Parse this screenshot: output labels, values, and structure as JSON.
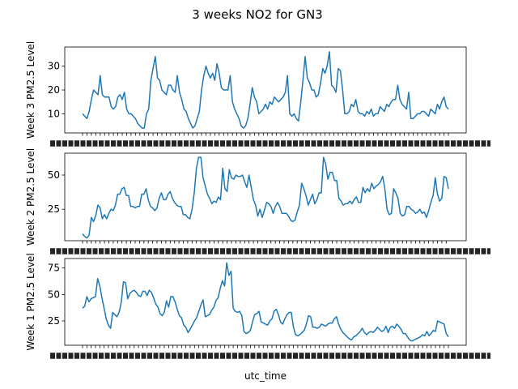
{
  "figure": {
    "suptitle": "3 weeks NO2 for GN3",
    "xlabel": "utc_time",
    "line_color": "#1f77b4"
  },
  "chart_data": [
    {
      "type": "line",
      "ylabel": "Week 3 PM2.5 Level",
      "yticks": [
        10,
        20,
        30
      ],
      "ylim": [
        2,
        38
      ],
      "series": [
        {
          "values": [
            10,
            9,
            8,
            11,
            16,
            20,
            19,
            18,
            26,
            18,
            17,
            17,
            17,
            13,
            12,
            13,
            17,
            18,
            16,
            19,
            12,
            10,
            10,
            9,
            8,
            6,
            5,
            4,
            4,
            10,
            12,
            24,
            29,
            34,
            25,
            24,
            20,
            19,
            18,
            22,
            22,
            20,
            19,
            26,
            19,
            16,
            12,
            11,
            8,
            6,
            4,
            5,
            8,
            11,
            20,
            26,
            30,
            27,
            25,
            27,
            24,
            31,
            27,
            21,
            20,
            20,
            20,
            26,
            15,
            12,
            10,
            8,
            5,
            4,
            5,
            8,
            14,
            21,
            17,
            15,
            10,
            11,
            12,
            14,
            12,
            15,
            14,
            17,
            16,
            15,
            16,
            17,
            19,
            26,
            10,
            9,
            10,
            8,
            7,
            15,
            24,
            34,
            25,
            23,
            20,
            20,
            17,
            18,
            23,
            29,
            27,
            30,
            36,
            22,
            21,
            19,
            29,
            28,
            20,
            10,
            10,
            11,
            14,
            13,
            16,
            11,
            10,
            10,
            9,
            11,
            10,
            12,
            9,
            10,
            10,
            13,
            12,
            11,
            14,
            13,
            15,
            16,
            16,
            22,
            16,
            14,
            13,
            12,
            19,
            8,
            8,
            9,
            10,
            10,
            11,
            11,
            10,
            9,
            12,
            11,
            10,
            14,
            12,
            15,
            17,
            13,
            12
          ]
        }
      ]
    },
    {
      "type": "line",
      "ylabel": "Week 2 PM2.5 Level",
      "yticks": [
        25,
        50
      ],
      "ylim": [
        2,
        66
      ],
      "series": [
        {
          "values": [
            7,
            5,
            4,
            6,
            19,
            16,
            20,
            28,
            26,
            18,
            21,
            18,
            22,
            25,
            24,
            28,
            36,
            36,
            40,
            41,
            35,
            35,
            27,
            27,
            26,
            27,
            27,
            36,
            36,
            40,
            32,
            27,
            26,
            24,
            26,
            33,
            37,
            32,
            32,
            36,
            38,
            33,
            30,
            28,
            27,
            27,
            21,
            21,
            19,
            18,
            25,
            37,
            55,
            63,
            63,
            48,
            42,
            36,
            33,
            29,
            31,
            30,
            34,
            32,
            55,
            40,
            38,
            54,
            48,
            47,
            50,
            49,
            49,
            50,
            45,
            41,
            50,
            41,
            32,
            28,
            20,
            25,
            19,
            24,
            30,
            29,
            27,
            22,
            27,
            30,
            27,
            22,
            22,
            22,
            20,
            17,
            16,
            17,
            23,
            28,
            44,
            40,
            35,
            28,
            32,
            36,
            29,
            32,
            37,
            37,
            63,
            58,
            47,
            52,
            52,
            46,
            46,
            33,
            31,
            28,
            29,
            29,
            31,
            29,
            32,
            34,
            30,
            30,
            41,
            37,
            40,
            38,
            44,
            40,
            42,
            43,
            45,
            49,
            40,
            25,
            21,
            22,
            40,
            37,
            33,
            22,
            20,
            21,
            27,
            27,
            25,
            24,
            22,
            23,
            25,
            22,
            23,
            19,
            24,
            30,
            35,
            48,
            36,
            31,
            33,
            49,
            48,
            40
          ]
        }
      ]
    },
    {
      "type": "line",
      "ylabel": "Week 1 PM2.5 Level",
      "yticks": [
        25,
        50,
        75
      ],
      "ylim": [
        2,
        84
      ],
      "series": [
        {
          "values": [
            37,
            39,
            48,
            43,
            46,
            47,
            48,
            65,
            58,
            47,
            37,
            27,
            21,
            18,
            33,
            31,
            29,
            33,
            43,
            62,
            61,
            46,
            51,
            53,
            54,
            52,
            49,
            48,
            53,
            53,
            49,
            54,
            52,
            47,
            41,
            38,
            32,
            30,
            33,
            44,
            38,
            48,
            48,
            43,
            36,
            30,
            28,
            21,
            19,
            14,
            17,
            21,
            25,
            28,
            34,
            40,
            45,
            29,
            30,
            31,
            35,
            38,
            44,
            47,
            56,
            63,
            58,
            80,
            68,
            72,
            37,
            34,
            33,
            34,
            30,
            15,
            13,
            14,
            16,
            24,
            31,
            32,
            34,
            24,
            23,
            22,
            21,
            25,
            27,
            34,
            36,
            31,
            24,
            22,
            27,
            31,
            33,
            33,
            19,
            12,
            11,
            12,
            14,
            16,
            22,
            30,
            29,
            19,
            19,
            18,
            19,
            22,
            21,
            20,
            22,
            23,
            23,
            27,
            29,
            22,
            17,
            14,
            12,
            10,
            8,
            7,
            10,
            11,
            13,
            15,
            18,
            14,
            12,
            14,
            15,
            14,
            16,
            19,
            17,
            15,
            16,
            20,
            14,
            19,
            20,
            18,
            22,
            20,
            17,
            13,
            13,
            10,
            7,
            6,
            7,
            8,
            9,
            10,
            12,
            11,
            15,
            11,
            13,
            16,
            15,
            25,
            24,
            23,
            22,
            13,
            10
          ]
        }
      ]
    }
  ]
}
